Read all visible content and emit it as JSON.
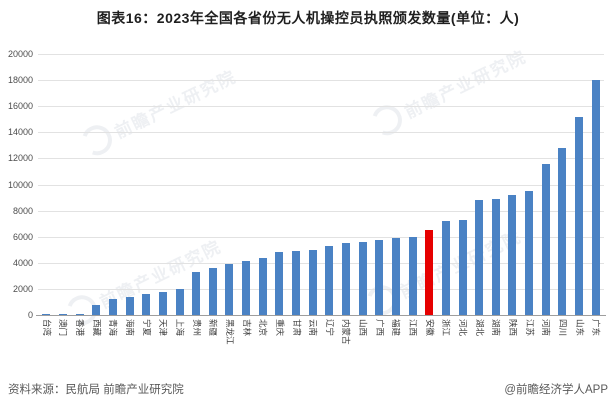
{
  "title": "图表16：2023年全国各省份无人机操控员执照颁发数量(单位：人)",
  "footer": {
    "source": "资料来源：民航局 前瞻产业研究院",
    "credit": "@前瞻经济学人APP"
  },
  "watermark": {
    "text": "前瞻产业研究院"
  },
  "colors": {
    "bar": "#4a82c4",
    "highlight": "#e60000",
    "grid": "#e2e2e2",
    "axis": "#9e9e9e"
  },
  "chart_data": {
    "type": "bar",
    "title": "图表16：2023年全国各省份无人机操控员执照颁发数量(单位：人)",
    "xlabel": "",
    "ylabel": "",
    "ylim": [
      0,
      20000
    ],
    "yticks": [
      0,
      2000,
      4000,
      6000,
      8000,
      10000,
      12000,
      14000,
      16000,
      18000,
      20000
    ],
    "grid": true,
    "legend": "none",
    "highlight_category": "安徽",
    "categories": [
      "台湾",
      "澳门",
      "香港",
      "西藏",
      "青海",
      "海南",
      "宁夏",
      "天津",
      "上海",
      "贵州",
      "新疆",
      "黑龙江",
      "吉林",
      "北京",
      "重庆",
      "甘肃",
      "云南",
      "辽宁",
      "内蒙古",
      "山西",
      "广西",
      "福建",
      "江西",
      "安徽",
      "浙江",
      "河北",
      "湖北",
      "湖南",
      "陕西",
      "江苏",
      "河南",
      "四川",
      "山东",
      "广东"
    ],
    "values": [
      10,
      30,
      45,
      800,
      1200,
      1400,
      1600,
      1750,
      2000,
      3300,
      3600,
      3900,
      4100,
      4400,
      4850,
      4900,
      5000,
      5300,
      5550,
      5600,
      5750,
      5900,
      6000,
      6500,
      7200,
      7300,
      8800,
      8900,
      9200,
      9500,
      11600,
      12800,
      15200,
      18000
    ]
  }
}
